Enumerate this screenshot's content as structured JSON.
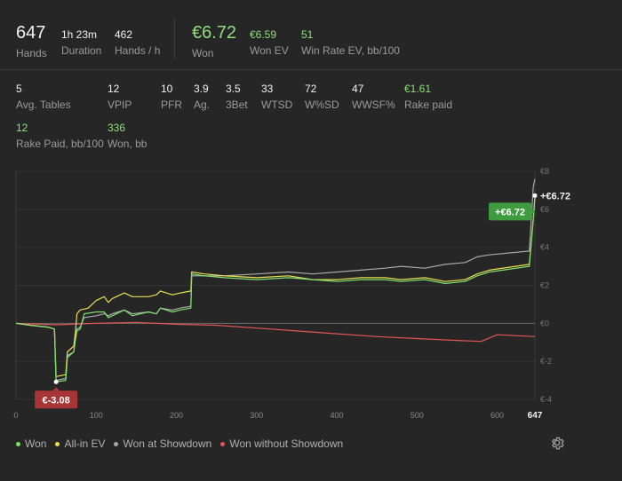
{
  "summary": {
    "hands": {
      "value": "647",
      "label": "Hands"
    },
    "duration": {
      "value": "1h 23m",
      "label": "Duration"
    },
    "hands_per_hour": {
      "value": "462",
      "label": "Hands / h"
    },
    "won": {
      "value": "€6.72",
      "label": "Won"
    },
    "won_ev": {
      "value": "€6.59",
      "label": "Won EV"
    },
    "win_rate_ev": {
      "value": "51",
      "label": "Win Rate EV, bb/100"
    }
  },
  "stats": {
    "avg_tables": {
      "value": "5",
      "label": "Avg. Tables"
    },
    "vpip": {
      "value": "12",
      "label": "VPIP"
    },
    "pfr": {
      "value": "10",
      "label": "PFR"
    },
    "ag": {
      "value": "3.9",
      "label": "Ag."
    },
    "three_bet": {
      "value": "3.5",
      "label": "3Bet"
    },
    "wtsd": {
      "value": "33",
      "label": "WTSD"
    },
    "wsd": {
      "value": "72",
      "label": "W%SD"
    },
    "wwsf": {
      "value": "47",
      "label": "WWSF%"
    },
    "rake_paid": {
      "value": "€1.61",
      "label": "Rake paid"
    },
    "rake_bb100": {
      "value": "12",
      "label": "Rake Paid, bb/100"
    },
    "won_bb": {
      "value": "336",
      "label": "Won, bb"
    }
  },
  "colors": {
    "won": "#7ee06e",
    "allin_ev": "#e8e050",
    "showdown": "#a8a8a8",
    "no_showdown": "#e05555",
    "badge_green": "#3f9b3f",
    "badge_red": "#a83535"
  },
  "legend": [
    "Won",
    "All-in EV",
    "Won at Showdown",
    "Won without Showdown"
  ],
  "icons": {
    "settings": "gear-icon"
  },
  "chart_data": {
    "type": "line",
    "xlim": [
      0,
      647
    ],
    "ylim": [
      -4,
      8
    ],
    "x_ticks": [
      "0",
      "100",
      "200",
      "300",
      "400",
      "500",
      "600",
      "647"
    ],
    "y_ticks": [
      "€8",
      "€6",
      "€4",
      "€2",
      "€0",
      "€-2",
      "€-4"
    ],
    "y_tick_values": [
      8,
      6,
      4,
      2,
      0,
      -2,
      -4
    ],
    "x_tick_values": [
      0,
      100,
      200,
      300,
      400,
      500,
      600,
      647
    ],
    "annotations": {
      "max_label": "+€6.72",
      "badge_max": "+€6.72",
      "badge_min": "€-3.08"
    },
    "min_point": [
      50,
      -3.08
    ],
    "max_point": [
      647,
      6.72
    ],
    "series": [
      {
        "name": "Won",
        "key": "won",
        "points": [
          [
            0,
            0
          ],
          [
            18,
            -0.1
          ],
          [
            40,
            -0.2
          ],
          [
            48,
            -0.3
          ],
          [
            50,
            -3.08
          ],
          [
            62,
            -3.0
          ],
          [
            64,
            -1.8
          ],
          [
            72,
            -1.5
          ],
          [
            74,
            -0.9
          ],
          [
            76,
            -0.4
          ],
          [
            80,
            -0.3
          ],
          [
            85,
            0.5
          ],
          [
            100,
            0.6
          ],
          [
            110,
            0.6
          ],
          [
            115,
            0.3
          ],
          [
            120,
            0.4
          ],
          [
            135,
            0.7
          ],
          [
            145,
            0.4
          ],
          [
            165,
            0.6
          ],
          [
            175,
            0.5
          ],
          [
            180,
            0.8
          ],
          [
            195,
            0.6
          ],
          [
            205,
            0.7
          ],
          [
            218,
            0.8
          ],
          [
            219,
            2.6
          ],
          [
            235,
            2.5
          ],
          [
            260,
            2.4
          ],
          [
            300,
            2.3
          ],
          [
            340,
            2.4
          ],
          [
            370,
            2.3
          ],
          [
            400,
            2.2
          ],
          [
            430,
            2.3
          ],
          [
            460,
            2.3
          ],
          [
            480,
            2.2
          ],
          [
            510,
            2.3
          ],
          [
            535,
            2.1
          ],
          [
            560,
            2.2
          ],
          [
            575,
            2.5
          ],
          [
            590,
            2.7
          ],
          [
            640,
            3.0
          ],
          [
            645,
            5.5
          ],
          [
            647,
            6.72
          ]
        ]
      },
      {
        "name": "All-in EV",
        "key": "allin_ev",
        "points": [
          [
            0,
            0
          ],
          [
            18,
            -0.1
          ],
          [
            40,
            -0.2
          ],
          [
            48,
            -0.3
          ],
          [
            50,
            -2.8
          ],
          [
            62,
            -2.7
          ],
          [
            64,
            -1.5
          ],
          [
            72,
            -1.2
          ],
          [
            74,
            -0.5
          ],
          [
            76,
            0.5
          ],
          [
            80,
            0.7
          ],
          [
            90,
            0.8
          ],
          [
            100,
            1.2
          ],
          [
            110,
            1.4
          ],
          [
            115,
            1.1
          ],
          [
            120,
            1.3
          ],
          [
            135,
            1.6
          ],
          [
            145,
            1.4
          ],
          [
            165,
            1.4
          ],
          [
            175,
            1.5
          ],
          [
            180,
            1.7
          ],
          [
            195,
            1.5
          ],
          [
            205,
            1.6
          ],
          [
            218,
            1.7
          ],
          [
            219,
            2.7
          ],
          [
            235,
            2.6
          ],
          [
            260,
            2.5
          ],
          [
            300,
            2.4
          ],
          [
            340,
            2.5
          ],
          [
            370,
            2.3
          ],
          [
            400,
            2.3
          ],
          [
            430,
            2.4
          ],
          [
            460,
            2.4
          ],
          [
            480,
            2.3
          ],
          [
            510,
            2.4
          ],
          [
            535,
            2.2
          ],
          [
            560,
            2.3
          ],
          [
            575,
            2.6
          ],
          [
            590,
            2.8
          ],
          [
            640,
            3.1
          ],
          [
            645,
            5.5
          ],
          [
            647,
            6.59
          ]
        ]
      },
      {
        "name": "Won at Showdown",
        "key": "showdown",
        "points": [
          [
            0,
            0
          ],
          [
            18,
            -0.1
          ],
          [
            40,
            -0.2
          ],
          [
            48,
            -0.3
          ],
          [
            50,
            -3.0
          ],
          [
            62,
            -2.9
          ],
          [
            64,
            -1.7
          ],
          [
            72,
            -1.5
          ],
          [
            74,
            -0.8
          ],
          [
            76,
            -0.3
          ],
          [
            80,
            -0.2
          ],
          [
            85,
            0.3
          ],
          [
            100,
            0.4
          ],
          [
            110,
            0.5
          ],
          [
            115,
            0.4
          ],
          [
            120,
            0.5
          ],
          [
            135,
            0.7
          ],
          [
            145,
            0.5
          ],
          [
            165,
            0.6
          ],
          [
            175,
            0.5
          ],
          [
            180,
            0.8
          ],
          [
            195,
            0.7
          ],
          [
            205,
            0.8
          ],
          [
            218,
            0.9
          ],
          [
            219,
            2.5
          ],
          [
            235,
            2.5
          ],
          [
            260,
            2.5
          ],
          [
            300,
            2.6
          ],
          [
            340,
            2.7
          ],
          [
            370,
            2.6
          ],
          [
            400,
            2.7
          ],
          [
            430,
            2.8
          ],
          [
            460,
            2.9
          ],
          [
            480,
            3.0
          ],
          [
            510,
            2.9
          ],
          [
            535,
            3.1
          ],
          [
            560,
            3.2
          ],
          [
            575,
            3.5
          ],
          [
            590,
            3.6
          ],
          [
            640,
            3.8
          ],
          [
            645,
            7.2
          ],
          [
            647,
            7.6
          ]
        ]
      },
      {
        "name": "Won without Showdown",
        "key": "no_showdown",
        "points": [
          [
            0,
            0
          ],
          [
            50,
            -0.08
          ],
          [
            100,
            0.0
          ],
          [
            150,
            0.05
          ],
          [
            200,
            -0.05
          ],
          [
            250,
            -0.1
          ],
          [
            300,
            -0.25
          ],
          [
            350,
            -0.4
          ],
          [
            400,
            -0.55
          ],
          [
            450,
            -0.7
          ],
          [
            500,
            -0.8
          ],
          [
            550,
            -0.9
          ],
          [
            580,
            -0.95
          ],
          [
            600,
            -0.6
          ],
          [
            647,
            -0.7
          ]
        ]
      }
    ]
  }
}
